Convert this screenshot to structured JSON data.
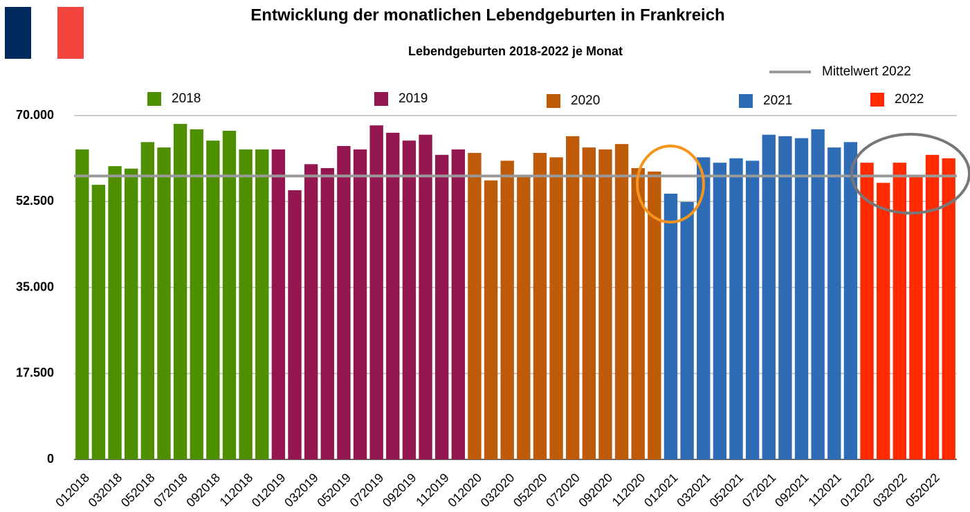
{
  "chart_data": {
    "type": "bar",
    "title": "Entwicklung der monatlichen Lebendgeburten in Frankreich",
    "subtitle": "Lebendgeburten 2018-2022 je Monat",
    "categories": [
      "012018",
      null,
      "032018",
      null,
      "052018",
      null,
      "072018",
      null,
      "092018",
      null,
      "112018",
      null,
      "012019",
      null,
      "032019",
      null,
      "052019",
      null,
      "072019",
      null,
      "092019",
      null,
      "112019",
      null,
      "012020",
      null,
      "032020",
      null,
      "052020",
      null,
      "072020",
      null,
      "092020",
      null,
      "112020",
      null,
      "012021",
      null,
      "032021",
      null,
      "052021",
      null,
      "072021",
      null,
      "092021",
      null,
      "112021",
      null,
      "012022",
      null,
      "032022",
      null,
      "052022",
      null
    ],
    "series": [
      {
        "name": "2018",
        "color": "#4e8f00",
        "values": [
          63100,
          55900,
          59700,
          59200,
          64600,
          63500,
          68300,
          67200,
          64900,
          66900,
          63100,
          63100,
          null,
          null,
          null,
          null,
          null,
          null,
          null,
          null,
          null,
          null,
          null,
          null,
          null,
          null,
          null,
          null,
          null,
          null,
          null,
          null,
          null,
          null,
          null,
          null,
          null,
          null,
          null,
          null,
          null,
          null,
          null,
          null,
          null,
          null,
          null,
          null,
          null,
          null,
          null,
          null,
          null,
          null
        ]
      },
      {
        "name": "2019",
        "color": "#941651",
        "values": [
          null,
          null,
          null,
          null,
          null,
          null,
          null,
          null,
          null,
          null,
          null,
          null,
          63100,
          54800,
          60100,
          59300,
          63800,
          63100,
          68000,
          66500,
          64900,
          66100,
          62000,
          63100,
          null,
          null,
          null,
          null,
          null,
          null,
          null,
          null,
          null,
          null,
          null,
          null,
          null,
          null,
          null,
          null,
          null,
          null,
          null,
          null,
          null,
          null,
          null,
          null,
          null,
          null,
          null,
          null,
          null,
          null
        ]
      },
      {
        "name": "2020",
        "color": "#bd5b09",
        "values": [
          null,
          null,
          null,
          null,
          null,
          null,
          null,
          null,
          null,
          null,
          null,
          null,
          null,
          null,
          null,
          null,
          null,
          null,
          null,
          null,
          null,
          null,
          null,
          null,
          62400,
          56800,
          60800,
          57700,
          62400,
          61500,
          65800,
          63500,
          63100,
          64200,
          59300,
          58600,
          null,
          null,
          null,
          null,
          null,
          null,
          null,
          null,
          null,
          null,
          null,
          null,
          null,
          null,
          null,
          null,
          null,
          null
        ]
      },
      {
        "name": "2021",
        "color": "#2e6db5",
        "values": [
          null,
          null,
          null,
          null,
          null,
          null,
          null,
          null,
          null,
          null,
          null,
          null,
          null,
          null,
          null,
          null,
          null,
          null,
          null,
          null,
          null,
          null,
          null,
          null,
          null,
          null,
          null,
          null,
          null,
          null,
          null,
          null,
          null,
          null,
          null,
          null,
          54100,
          52400,
          61500,
          60400,
          61300,
          60800,
          66100,
          65800,
          65400,
          67200,
          63500,
          64600,
          null,
          null,
          null,
          null,
          null,
          null
        ]
      },
      {
        "name": "2022",
        "color": "#ff2a00",
        "values": [
          null,
          null,
          null,
          null,
          null,
          null,
          null,
          null,
          null,
          null,
          null,
          null,
          null,
          null,
          null,
          null,
          null,
          null,
          null,
          null,
          null,
          null,
          null,
          null,
          null,
          null,
          null,
          null,
          null,
          null,
          null,
          null,
          null,
          null,
          null,
          null,
          null,
          null,
          null,
          null,
          null,
          null,
          null,
          null,
          null,
          null,
          null,
          null,
          60400,
          56300,
          60400,
          57600,
          62000,
          61300
        ]
      }
    ],
    "reference_line": {
      "name": "Mittelwert 2022",
      "value": 57700,
      "color": "#999999"
    },
    "ylim": [
      0,
      70000
    ],
    "yticks": [
      0,
      {
        "value": 17500,
        "label": "17.500"
      },
      {
        "value": 35000,
        "label": "35.000"
      },
      {
        "value": 52500,
        "label": "52.500"
      },
      {
        "value": 70000,
        "label": "70.000"
      }
    ],
    "grid": true
  }
}
